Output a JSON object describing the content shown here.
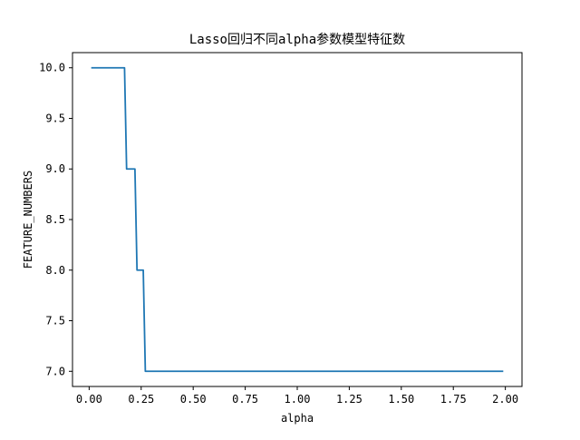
{
  "chart_data": {
    "type": "line",
    "title": "Lasso回归不同alpha参数模型特征数",
    "xlabel": "alpha",
    "ylabel": "FEATURE_NUMBERS",
    "xlim": [
      -0.08,
      2.08
    ],
    "ylim": [
      6.85,
      10.15
    ],
    "xticks": [
      0.0,
      0.25,
      0.5,
      0.75,
      1.0,
      1.25,
      1.5,
      1.75,
      2.0
    ],
    "xtick_labels": [
      "0.00",
      "0.25",
      "0.50",
      "0.75",
      "1.00",
      "1.25",
      "1.50",
      "1.75",
      "2.00"
    ],
    "yticks": [
      7.0,
      7.5,
      8.0,
      8.5,
      9.0,
      9.5,
      10.0
    ],
    "ytick_labels": [
      "7.0",
      "7.5",
      "8.0",
      "8.5",
      "9.0",
      "9.5",
      "10.0"
    ],
    "grid": false,
    "legend": "none",
    "series": [
      {
        "color": "#1f77b4",
        "x": [
          0.01,
          0.17,
          0.18,
          0.22,
          0.23,
          0.26,
          0.27,
          1.99
        ],
        "y": [
          10,
          10,
          9,
          9,
          8,
          8,
          7,
          7
        ]
      }
    ]
  }
}
